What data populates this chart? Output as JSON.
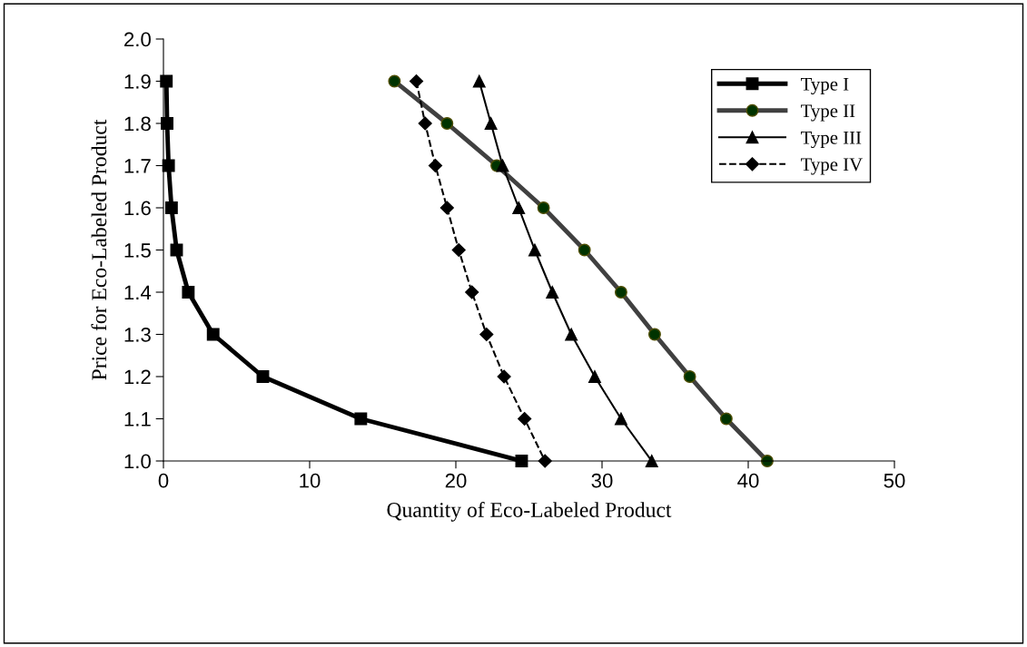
{
  "chart_data": {
    "type": "line",
    "xlabel": "Quantity of Eco-Labeled Product",
    "ylabel": "Price for Eco-Labeled Product",
    "xlim": [
      0,
      50
    ],
    "xticks": [
      0,
      10,
      20,
      30,
      40,
      50
    ],
    "ylim": [
      1.0,
      2.0
    ],
    "yticks": [
      {
        "value": 1.0,
        "label": "1.0"
      },
      {
        "value": 1.1,
        "label": "1.1"
      },
      {
        "value": 1.2,
        "label": "1.2"
      },
      {
        "value": 1.3,
        "label": "1.3"
      },
      {
        "value": 1.4,
        "label": "1.4"
      },
      {
        "value": 1.5,
        "label": "1.5"
      },
      {
        "value": 1.6,
        "label": "1.6"
      },
      {
        "value": 1.7,
        "label": "1.7"
      },
      {
        "value": 1.8,
        "label": "1.8"
      },
      {
        "value": 1.9,
        "label": "1.9"
      },
      {
        "value": 2.0,
        "label": "2.0"
      }
    ],
    "grid": false,
    "legend": "top right",
    "series": [
      {
        "name": "Type I",
        "color": "#000000",
        "marker": "square",
        "line_style": "solid",
        "x": [
          0.2,
          0.25,
          0.35,
          0.55,
          0.9,
          1.7,
          3.4,
          6.8,
          13.5,
          24.5
        ],
        "values": [
          1.9,
          1.8,
          1.7,
          1.6,
          1.5,
          1.4,
          1.3,
          1.2,
          1.1,
          1.0
        ]
      },
      {
        "name": "Type II",
        "color": "#404040",
        "marker": "circle",
        "line_style": "solid",
        "x": [
          15.8,
          19.4,
          22.8,
          26.0,
          28.8,
          31.3,
          33.6,
          36.0,
          38.5,
          41.3
        ],
        "values": [
          1.9,
          1.8,
          1.7,
          1.6,
          1.5,
          1.4,
          1.3,
          1.2,
          1.1,
          1.0
        ]
      },
      {
        "name": "Type III",
        "color": "#000000",
        "marker": "triangle",
        "line_style": "solid",
        "x": [
          21.6,
          22.4,
          23.2,
          24.3,
          25.4,
          26.6,
          27.9,
          29.5,
          31.3,
          33.4
        ],
        "values": [
          1.9,
          1.8,
          1.7,
          1.6,
          1.5,
          1.4,
          1.3,
          1.2,
          1.1,
          1.0
        ]
      },
      {
        "name": "Type IV",
        "color": "#000000",
        "marker": "diamond",
        "line_style": "dashed",
        "x": [
          17.3,
          17.9,
          18.6,
          19.4,
          20.2,
          21.1,
          22.1,
          23.3,
          24.7,
          26.1
        ],
        "values": [
          1.9,
          1.8,
          1.7,
          1.6,
          1.5,
          1.4,
          1.3,
          1.2,
          1.1,
          1.0
        ]
      }
    ]
  }
}
